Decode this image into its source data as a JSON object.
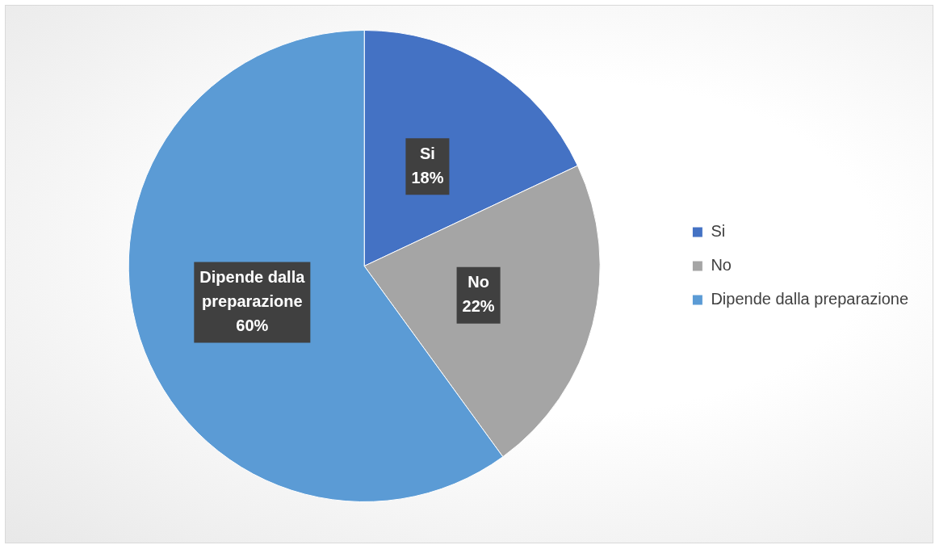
{
  "chart_data": {
    "type": "pie",
    "categories": [
      "Si",
      "No",
      "Dipende dalla preparazione"
    ],
    "values": [
      18,
      22,
      60
    ],
    "colors": [
      "#4472c4",
      "#a5a5a5",
      "#5b9bd5"
    ],
    "value_labels": [
      "18%",
      "22%",
      "60%"
    ],
    "legend": "right"
  }
}
